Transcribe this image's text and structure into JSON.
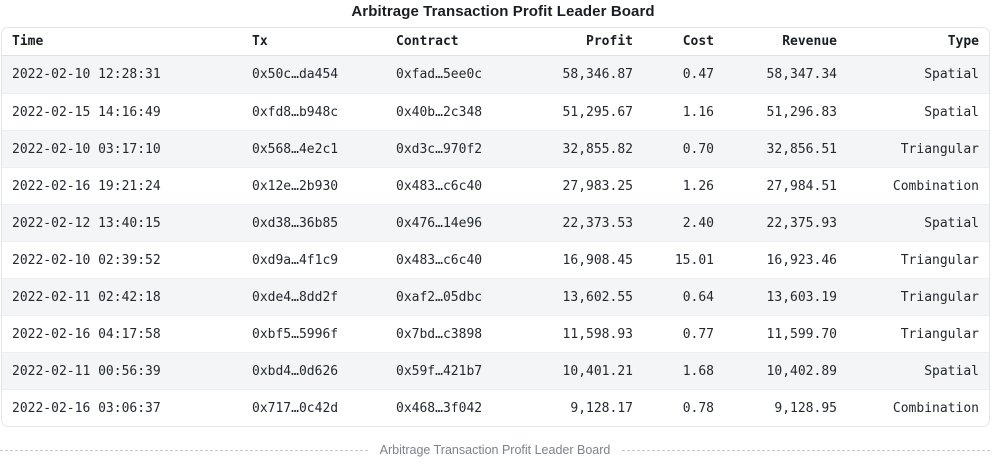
{
  "title": "Arbitrage Transaction Profit Leader Board",
  "caption": "Arbitrage Transaction Profit Leader Board",
  "colors": {
    "alt_row_bg": "#f3f5f6",
    "card_border": "#e2e5e9",
    "header_border": "#dde1e5",
    "row_border": "#edeff2",
    "ink": "#1a1e24",
    "cell_ink": "#24292f",
    "caption_ink": "#7c838d",
    "dash": "#c5c9cd"
  },
  "table": {
    "columns": [
      {
        "key": "time",
        "label": "Time",
        "align": "left"
      },
      {
        "key": "tx",
        "label": "Tx",
        "align": "left"
      },
      {
        "key": "contract",
        "label": "Contract",
        "align": "left"
      },
      {
        "key": "profit",
        "label": "Profit",
        "align": "right"
      },
      {
        "key": "cost",
        "label": "Cost",
        "align": "right"
      },
      {
        "key": "revenue",
        "label": "Revenue",
        "align": "right"
      },
      {
        "key": "type",
        "label": "Type",
        "align": "right"
      }
    ],
    "rows": [
      {
        "time": "2022-02-10 12:28:31",
        "tx": "0x50c…da454",
        "contract": "0xfad…5ee0c",
        "profit": "58,346.87",
        "cost": "0.47",
        "revenue": "58,347.34",
        "type": "Spatial"
      },
      {
        "time": "2022-02-15 14:16:49",
        "tx": "0xfd8…b948c",
        "contract": "0x40b…2c348",
        "profit": "51,295.67",
        "cost": "1.16",
        "revenue": "51,296.83",
        "type": "Spatial"
      },
      {
        "time": "2022-02-10 03:17:10",
        "tx": "0x568…4e2c1",
        "contract": "0xd3c…970f2",
        "profit": "32,855.82",
        "cost": "0.70",
        "revenue": "32,856.51",
        "type": "Triangular"
      },
      {
        "time": "2022-02-16 19:21:24",
        "tx": "0x12e…2b930",
        "contract": "0x483…c6c40",
        "profit": "27,983.25",
        "cost": "1.26",
        "revenue": "27,984.51",
        "type": "Combination"
      },
      {
        "time": "2022-02-12 13:40:15",
        "tx": "0xd38…36b85",
        "contract": "0x476…14e96",
        "profit": "22,373.53",
        "cost": "2.40",
        "revenue": "22,375.93",
        "type": "Spatial"
      },
      {
        "time": "2022-02-10 02:39:52",
        "tx": "0xd9a…4f1c9",
        "contract": "0x483…c6c40",
        "profit": "16,908.45",
        "cost": "15.01",
        "revenue": "16,923.46",
        "type": "Triangular"
      },
      {
        "time": "2022-02-11 02:42:18",
        "tx": "0xde4…8dd2f",
        "contract": "0xaf2…05dbc",
        "profit": "13,602.55",
        "cost": "0.64",
        "revenue": "13,603.19",
        "type": "Triangular"
      },
      {
        "time": "2022-02-16 04:17:58",
        "tx": "0xbf5…5996f",
        "contract": "0x7bd…c3898",
        "profit": "11,598.93",
        "cost": "0.77",
        "revenue": "11,599.70",
        "type": "Triangular"
      },
      {
        "time": "2022-02-11 00:56:39",
        "tx": "0xbd4…0d626",
        "contract": "0x59f…421b7",
        "profit": "10,401.21",
        "cost": "1.68",
        "revenue": "10,402.89",
        "type": "Spatial"
      },
      {
        "time": "2022-02-16 03:06:37",
        "tx": "0x717…0c42d",
        "contract": "0x468…3f042",
        "profit": "9,128.17",
        "cost": "0.78",
        "revenue": "9,128.95",
        "type": "Combination"
      }
    ]
  }
}
